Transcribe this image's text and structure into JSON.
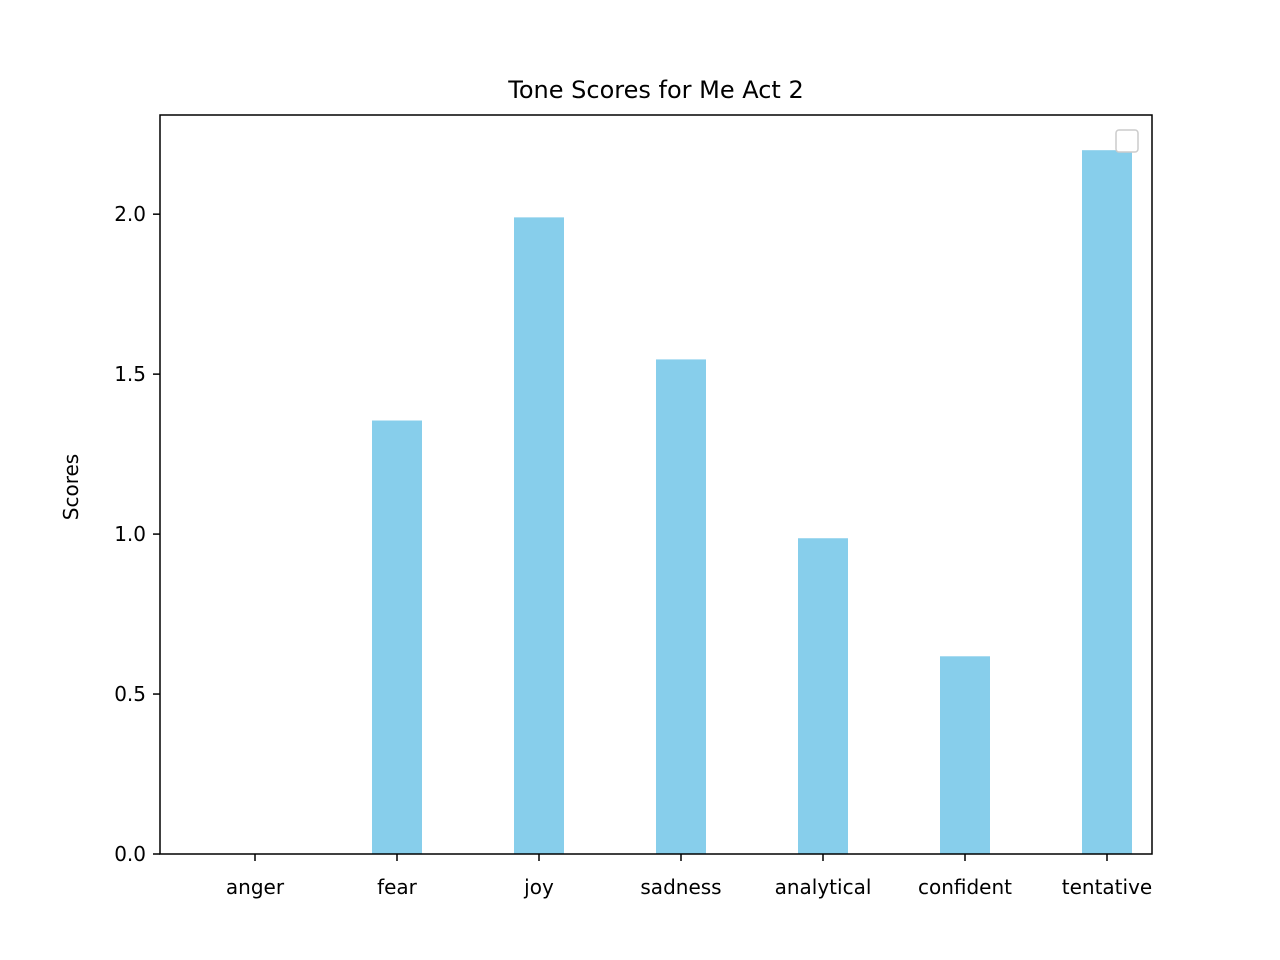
{
  "chart_data": {
    "type": "bar",
    "title": "Tone Scores for Me Act 2",
    "xlabel": "",
    "ylabel": "Scores",
    "categories": [
      "anger",
      "fear",
      "joy",
      "sadness",
      "analytical",
      "confident",
      "tentative"
    ],
    "values": [
      0.0,
      1.355,
      1.99,
      1.546,
      0.987,
      0.618,
      2.2
    ],
    "ylim": [
      0,
      2.31
    ],
    "yticks": [
      "0.0",
      "0.5",
      "1.0",
      "1.5",
      "2.0"
    ],
    "grid": false,
    "legend": {
      "placement": "top-right",
      "entries": []
    },
    "colors": {
      "bar": "#87ceeb",
      "axis": "#000000",
      "legend_border": "#cccccc"
    }
  }
}
